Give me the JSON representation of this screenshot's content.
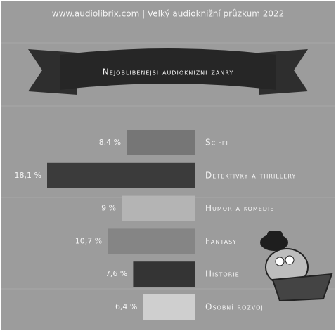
{
  "chart_data": {
    "type": "hbar",
    "subtitle": "www.audiolibrix.com | Velký audioknižní průzkum 2022",
    "title": "Nejoblíbenější audioknižní žánry",
    "categories": [
      "Sci-fi",
      "Detektivky a thrillery",
      "Humor a komedie",
      "Fantasy",
      "Historie",
      "Osobní rozvoj"
    ],
    "values": [
      8.4,
      18.1,
      9,
      10.7,
      7.6,
      6.4
    ],
    "value_labels": [
      "8,4 %",
      "18,1 %",
      "9 %",
      "10,7 %",
      "7,6 %",
      "6,4 %"
    ],
    "colors": [
      "#767676",
      "#3b3b3b",
      "#b4b4b4",
      "#858585",
      "#343434",
      "#cfcfcf"
    ]
  }
}
